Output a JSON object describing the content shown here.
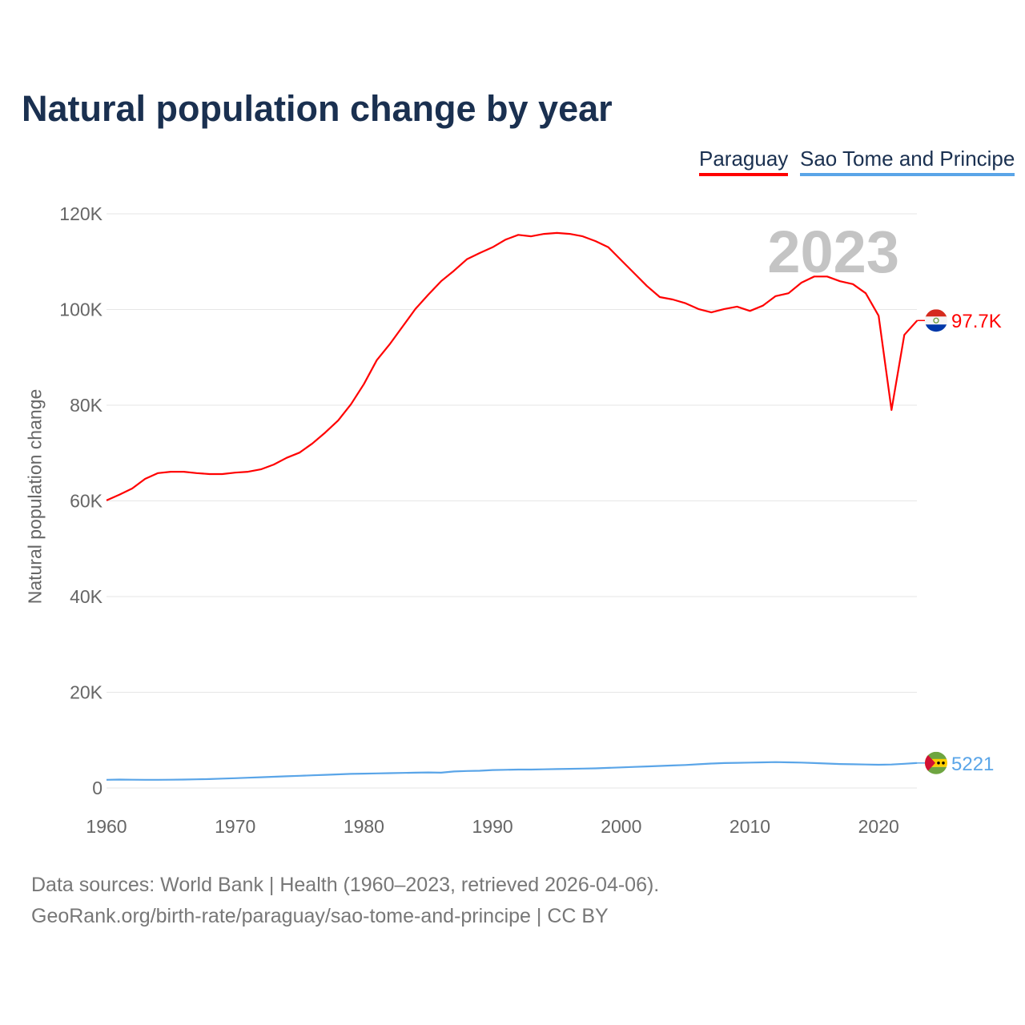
{
  "title": "Natural population change by year",
  "legend": [
    {
      "label": "Paraguay"
    },
    {
      "label": "Sao Tome and Principe"
    }
  ],
  "source_line1": "Data sources: World Bank | Health (1960–2023, retrieved 2026-04-06).",
  "source_line2": "GeoRank.org/birth-rate/paraguay/sao-tome-and-principe | CC BY",
  "chart_data": {
    "type": "line",
    "title": "Natural population change by year",
    "xlabel": "",
    "ylabel": "Natural population change",
    "year_label": "2023",
    "xlim": [
      1960,
      2023
    ],
    "ylim": [
      0,
      120000
    ],
    "x_ticks": [
      "1960",
      "1970",
      "1980",
      "1990",
      "2000",
      "2010",
      "2020"
    ],
    "y_ticks": [
      {
        "v": 0,
        "label": "0"
      },
      {
        "v": 20,
        "label": "20K"
      },
      {
        "v": 40,
        "label": "40K"
      },
      {
        "v": 60,
        "label": "60K"
      },
      {
        "v": 80,
        "label": "80K"
      },
      {
        "v": 100,
        "label": "100K"
      },
      {
        "v": 120,
        "label": "120K"
      }
    ],
    "units": "thousands",
    "x_start": 1960,
    "series": [
      {
        "name": "Paraguay",
        "color": "#ff0000",
        "end_label": "97.7K",
        "values": [
          60.1,
          61.3,
          62.6,
          64.6,
          65.8,
          66.1,
          66.1,
          65.8,
          65.6,
          65.6,
          65.9,
          66.1,
          66.6,
          67.6,
          69.0,
          70.1,
          72.0,
          74.3,
          76.8,
          80.2,
          84.4,
          89.4,
          92.7,
          96.4,
          100.1,
          103.1,
          105.9,
          108.1,
          110.5,
          111.8,
          113.0,
          114.6,
          115.6,
          115.3,
          115.8,
          116.0,
          115.8,
          115.3,
          114.3,
          113.0,
          110.3,
          107.6,
          104.9,
          102.6,
          102.1,
          101.3,
          100.1,
          99.4,
          100.1,
          100.6,
          99.7,
          100.8,
          102.8,
          103.4,
          105.6,
          106.9,
          106.9,
          105.9,
          105.3,
          103.4,
          98.7,
          79.0,
          94.7,
          97.7
        ]
      },
      {
        "name": "Sao Tome and Principe",
        "color": "#5aa5e8",
        "end_label": "5221",
        "values": [
          1.7,
          1.75,
          1.72,
          1.7,
          1.7,
          1.72,
          1.75,
          1.8,
          1.85,
          1.95,
          2.05,
          2.15,
          2.25,
          2.35,
          2.45,
          2.55,
          2.65,
          2.75,
          2.85,
          2.95,
          3.0,
          3.05,
          3.1,
          3.15,
          3.2,
          3.25,
          3.2,
          3.45,
          3.55,
          3.6,
          3.75,
          3.8,
          3.85,
          3.85,
          3.9,
          3.95,
          4.0,
          4.05,
          4.1,
          4.2,
          4.3,
          4.4,
          4.5,
          4.6,
          4.7,
          4.8,
          4.95,
          5.1,
          5.2,
          5.25,
          5.3,
          5.35,
          5.4,
          5.35,
          5.3,
          5.2,
          5.1,
          5.0,
          4.95,
          4.9,
          4.85,
          4.9,
          5.05,
          5.221
        ]
      }
    ]
  }
}
